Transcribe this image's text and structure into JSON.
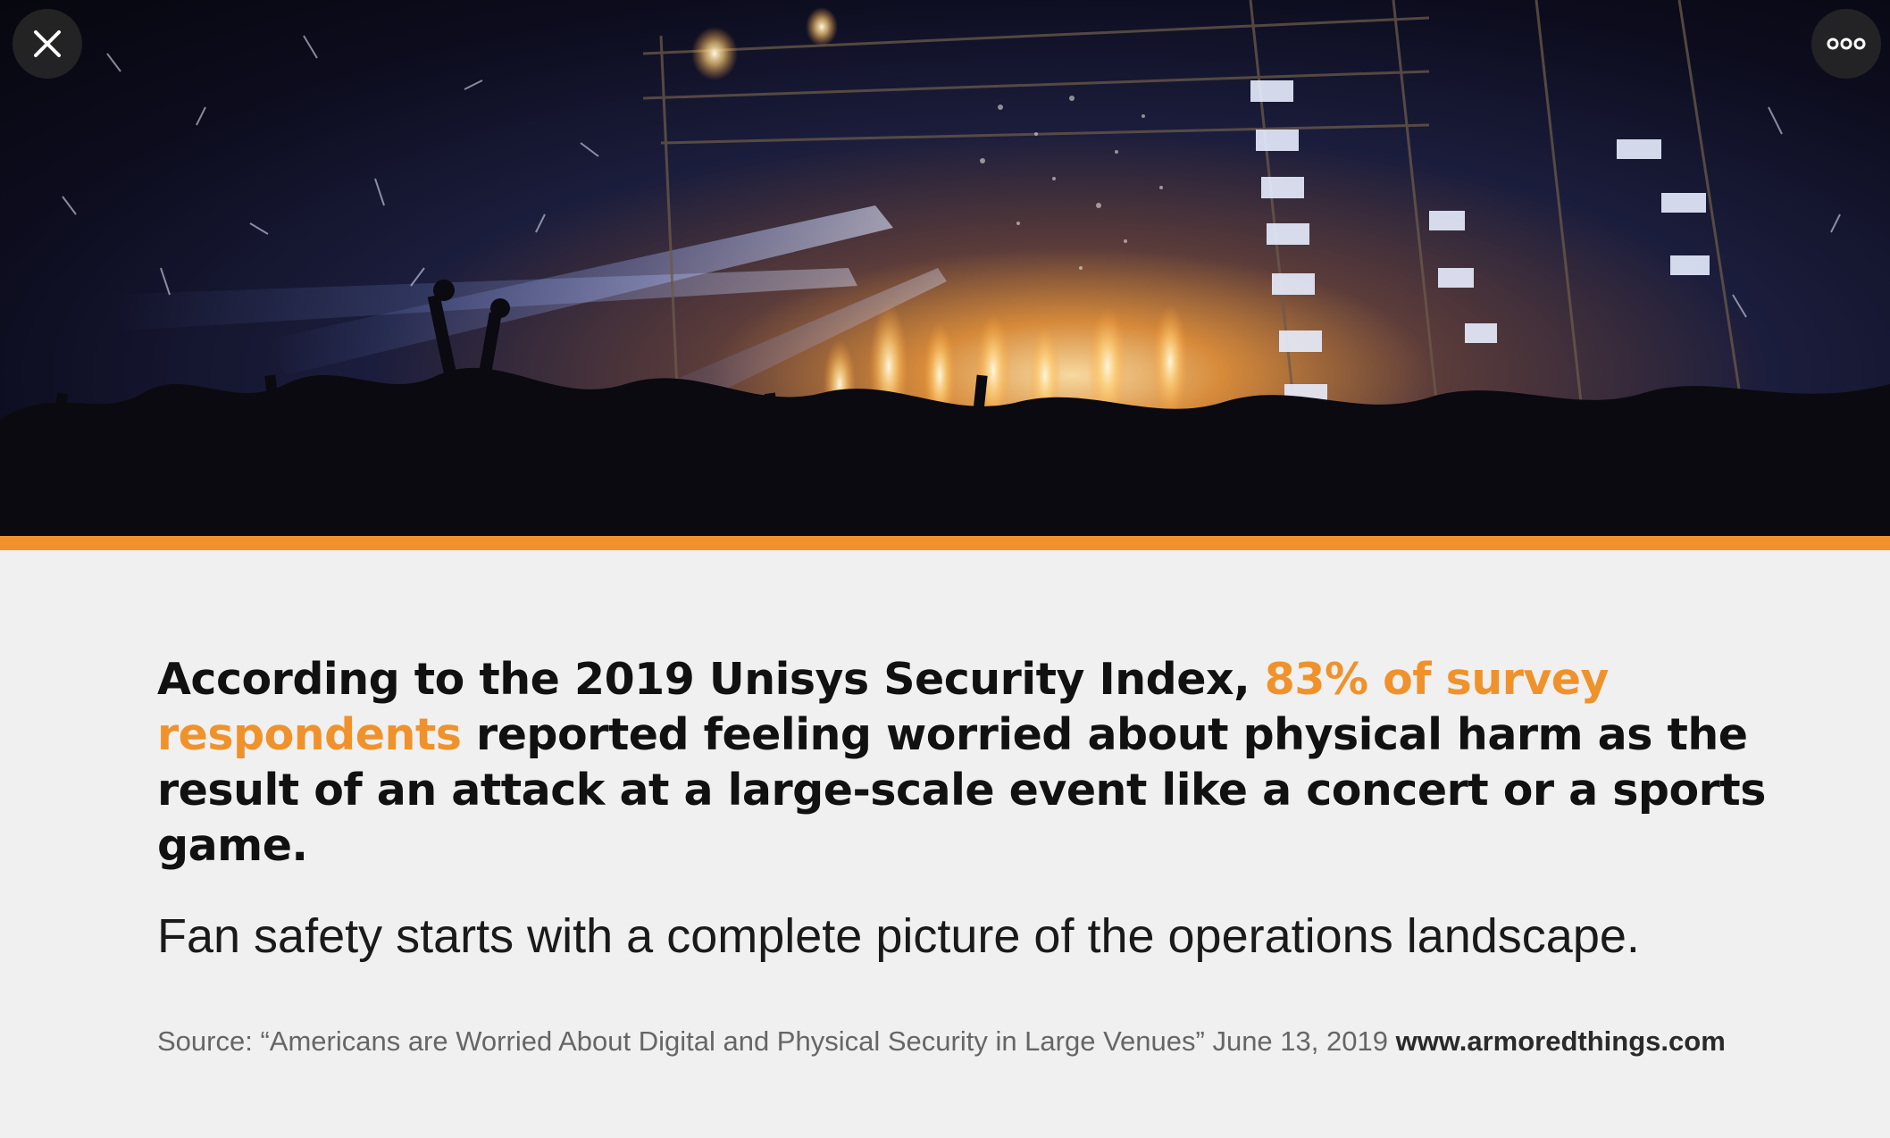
{
  "viewer": {
    "close_label": "Close",
    "more_label": "More options"
  },
  "icons": {
    "close": "close-icon",
    "more": "more-horizontal-icon"
  },
  "hero": {
    "image": "concert-crowd-photo"
  },
  "colors": {
    "accent": "#f0922b",
    "background": "#f0f0f0",
    "headline": "#111111",
    "source_text": "#666666"
  },
  "content": {
    "headline_part1": "According to the 2019 Unisys Security Index, ",
    "headline_highlight": "83% of survey respondents",
    "headline_part2": " reported feeling worried about physical harm as the result of an attack at a large-scale event like a concert or a sports game.",
    "subhead": "Fan safety starts with a complete picture of the operations landscape.",
    "source_text": "Source: “Americans are Worried About Digital and Physical Security in Large Venues” June 13, 2019 ",
    "source_site": "www.armoredthings.com"
  }
}
